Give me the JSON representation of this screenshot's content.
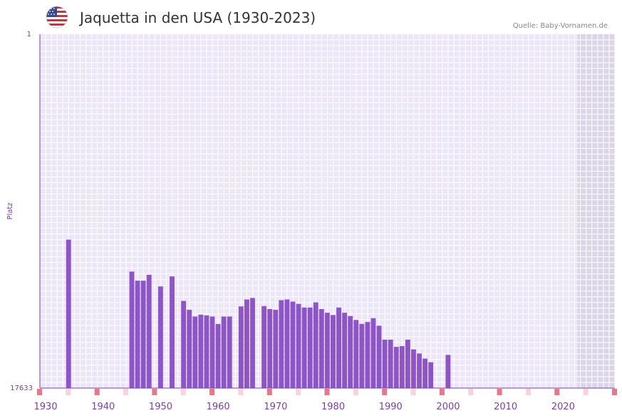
{
  "header": {
    "title": "Jaquetta in den USA (1930-2023)",
    "source": "Quelle: Baby-Vornamen.de",
    "flag": "us-flag-icon"
  },
  "colors": {
    "bar": "#8e55c6",
    "grid_bg": "#ede6f8",
    "shade": "#dcd5e8",
    "axis": "#7b3fa0",
    "marker_decade": "#e57a87",
    "marker_half": "#f6d4d9"
  },
  "chart_data": {
    "type": "bar",
    "title": "Jaquetta in den USA (1930-2023)",
    "xlabel": "",
    "ylabel": "Platz",
    "y_top_label": "1",
    "y_bottom_label": "17633",
    "ylim": [
      17633,
      1
    ],
    "xlim": [
      1929,
      2029
    ],
    "x_tick_labels": [
      "1930",
      "1940",
      "1950",
      "1960",
      "1970",
      "1980",
      "1990",
      "2000",
      "2010",
      "2020"
    ],
    "x_ticks": [
      1930,
      1940,
      1950,
      1960,
      1970,
      1980,
      1990,
      2000,
      2010,
      2020
    ],
    "shaded_from": 2023,
    "series": [
      {
        "name": "Platz",
        "x": [
          1934,
          1945,
          1946,
          1947,
          1948,
          1950,
          1952,
          1954,
          1955,
          1956,
          1957,
          1958,
          1959,
          1960,
          1961,
          1962,
          1964,
          1965,
          1966,
          1968,
          1969,
          1970,
          1971,
          1972,
          1973,
          1974,
          1975,
          1976,
          1977,
          1978,
          1979,
          1980,
          1981,
          1982,
          1983,
          1984,
          1985,
          1986,
          1987,
          1988,
          1989,
          1990,
          1991,
          1992,
          1993,
          1994,
          1995,
          1996,
          1997,
          2000
        ],
        "values": [
          10236,
          11828,
          12282,
          12282,
          11988,
          12569,
          12069,
          13289,
          13733,
          14067,
          13974,
          14011,
          14067,
          14437,
          14067,
          14067,
          13563,
          13216,
          13143,
          13546,
          13694,
          13733,
          13252,
          13216,
          13325,
          13436,
          13620,
          13620,
          13361,
          13694,
          13878,
          13993,
          13620,
          13878,
          14043,
          14237,
          14436,
          14340,
          14149,
          14523,
          15221,
          15221,
          15580,
          15542,
          15221,
          15705,
          15910,
          16163,
          16344,
          15980
        ]
      }
    ]
  }
}
